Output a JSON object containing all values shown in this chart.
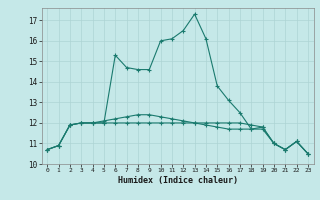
{
  "xlabel": "Humidex (Indice chaleur)",
  "xlim": [
    -0.5,
    23.5
  ],
  "ylim": [
    10,
    17.6
  ],
  "yticks": [
    10,
    11,
    12,
    13,
    14,
    15,
    16,
    17
  ],
  "xticks": [
    0,
    1,
    2,
    3,
    4,
    5,
    6,
    7,
    8,
    9,
    10,
    11,
    12,
    13,
    14,
    15,
    16,
    17,
    18,
    19,
    20,
    21,
    22,
    23
  ],
  "bg_color": "#c5e8e8",
  "line_color": "#1a7a6e",
  "grid_color": "#aed4d4",
  "series": [
    [
      10.7,
      10.9,
      11.9,
      12.0,
      12.0,
      12.0,
      15.3,
      14.7,
      14.6,
      14.6,
      16.0,
      16.1,
      16.5,
      17.3,
      16.1,
      13.8,
      13.1,
      12.5,
      11.7,
      11.8,
      11.0,
      10.7,
      11.1,
      10.5
    ],
    [
      10.7,
      10.9,
      11.9,
      12.0,
      12.0,
      12.0,
      12.0,
      12.0,
      12.0,
      12.0,
      12.0,
      12.0,
      12.0,
      12.0,
      12.0,
      12.0,
      12.0,
      12.0,
      11.9,
      11.8,
      11.0,
      10.7,
      11.1,
      10.5
    ],
    [
      10.7,
      10.9,
      11.9,
      12.0,
      12.0,
      12.1,
      12.2,
      12.3,
      12.4,
      12.4,
      12.3,
      12.2,
      12.1,
      12.0,
      11.9,
      11.8,
      11.7,
      11.7,
      11.7,
      11.7,
      11.0,
      10.7,
      11.1,
      10.5
    ]
  ]
}
